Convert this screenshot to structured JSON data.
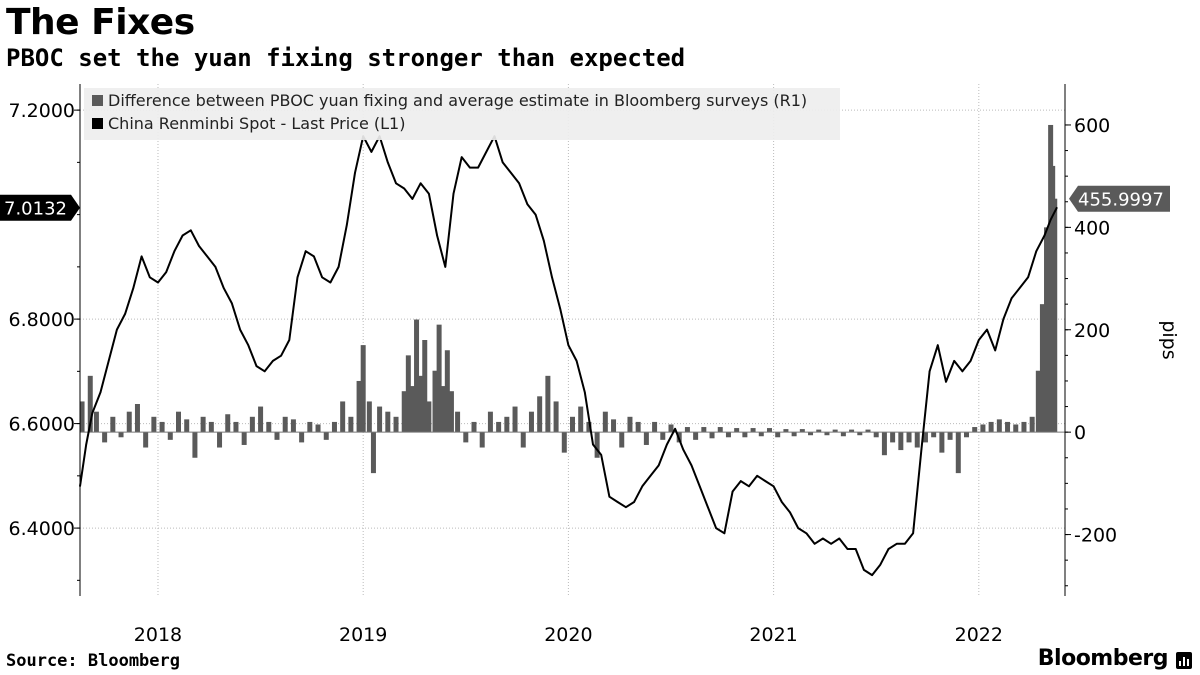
{
  "header": {
    "title": "The Fixes",
    "subtitle": "PBOC set the yuan fixing stronger than expected"
  },
  "footer": {
    "source": "Source: Bloomberg",
    "brand": "Bloomberg"
  },
  "chart_data": {
    "type": "bar",
    "title": "The Fixes",
    "subtitle": "PBOC set the yuan fixing stronger than expected",
    "legend_position": "top-left",
    "grid": true,
    "x_ticks": [
      "2018",
      "2019",
      "2020",
      "2021",
      "2022"
    ],
    "x_range": [
      2017.62,
      2022.42
    ],
    "left_axis": {
      "ticks": [
        "7.2000",
        "6.8000",
        "6.6000",
        "6.4000"
      ],
      "range": [
        6.27,
        7.25
      ],
      "label": ""
    },
    "right_axis": {
      "ticks": [
        "600",
        "400",
        "200",
        "0",
        "-200"
      ],
      "range": [
        -320,
        680
      ],
      "label": "pips"
    },
    "series": [
      {
        "name": "Difference between PBOC yuan fixing and average estimate in Bloomberg surveys (R1)",
        "type": "bar",
        "axis": "right",
        "color": "#5a5a5a",
        "last_value": "455.9997",
        "points": [
          [
            2017.63,
            60
          ],
          [
            2017.67,
            110
          ],
          [
            2017.7,
            40
          ],
          [
            2017.74,
            -20
          ],
          [
            2017.78,
            30
          ],
          [
            2017.82,
            -10
          ],
          [
            2017.86,
            40
          ],
          [
            2017.9,
            55
          ],
          [
            2017.94,
            -30
          ],
          [
            2017.98,
            30
          ],
          [
            2018.02,
            20
          ],
          [
            2018.06,
            -15
          ],
          [
            2018.1,
            40
          ],
          [
            2018.14,
            25
          ],
          [
            2018.18,
            -50
          ],
          [
            2018.22,
            30
          ],
          [
            2018.26,
            20
          ],
          [
            2018.3,
            -30
          ],
          [
            2018.34,
            35
          ],
          [
            2018.38,
            20
          ],
          [
            2018.42,
            -25
          ],
          [
            2018.46,
            30
          ],
          [
            2018.5,
            50
          ],
          [
            2018.54,
            20
          ],
          [
            2018.58,
            -15
          ],
          [
            2018.62,
            30
          ],
          [
            2018.66,
            25
          ],
          [
            2018.7,
            -20
          ],
          [
            2018.74,
            20
          ],
          [
            2018.78,
            15
          ],
          [
            2018.82,
            -15
          ],
          [
            2018.86,
            20
          ],
          [
            2018.9,
            60
          ],
          [
            2018.94,
            30
          ],
          [
            2018.98,
            100
          ],
          [
            2019.0,
            170
          ],
          [
            2019.03,
            60
          ],
          [
            2019.05,
            -80
          ],
          [
            2019.08,
            50
          ],
          [
            2019.12,
            40
          ],
          [
            2019.16,
            30
          ],
          [
            2019.2,
            80
          ],
          [
            2019.22,
            150
          ],
          [
            2019.24,
            90
          ],
          [
            2019.26,
            220
          ],
          [
            2019.28,
            110
          ],
          [
            2019.3,
            180
          ],
          [
            2019.32,
            60
          ],
          [
            2019.35,
            120
          ],
          [
            2019.37,
            210
          ],
          [
            2019.39,
            90
          ],
          [
            2019.41,
            160
          ],
          [
            2019.43,
            80
          ],
          [
            2019.46,
            40
          ],
          [
            2019.5,
            -20
          ],
          [
            2019.54,
            20
          ],
          [
            2019.58,
            -30
          ],
          [
            2019.62,
            40
          ],
          [
            2019.66,
            20
          ],
          [
            2019.7,
            30
          ],
          [
            2019.74,
            50
          ],
          [
            2019.78,
            -30
          ],
          [
            2019.82,
            40
          ],
          [
            2019.86,
            70
          ],
          [
            2019.9,
            110
          ],
          [
            2019.94,
            60
          ],
          [
            2019.98,
            -40
          ],
          [
            2020.02,
            30
          ],
          [
            2020.06,
            50
          ],
          [
            2020.1,
            20
          ],
          [
            2020.14,
            -50
          ],
          [
            2020.18,
            40
          ],
          [
            2020.22,
            25
          ],
          [
            2020.26,
            -30
          ],
          [
            2020.3,
            30
          ],
          [
            2020.34,
            20
          ],
          [
            2020.38,
            -25
          ],
          [
            2020.42,
            20
          ],
          [
            2020.46,
            -15
          ],
          [
            2020.5,
            15
          ],
          [
            2020.54,
            -20
          ],
          [
            2020.58,
            10
          ],
          [
            2020.62,
            -15
          ],
          [
            2020.66,
            10
          ],
          [
            2020.7,
            -12
          ],
          [
            2020.74,
            10
          ],
          [
            2020.78,
            -10
          ],
          [
            2020.82,
            8
          ],
          [
            2020.86,
            -10
          ],
          [
            2020.9,
            8
          ],
          [
            2020.94,
            -8
          ],
          [
            2020.98,
            8
          ],
          [
            2021.02,
            -10
          ],
          [
            2021.06,
            6
          ],
          [
            2021.1,
            -8
          ],
          [
            2021.14,
            6
          ],
          [
            2021.18,
            -6
          ],
          [
            2021.22,
            5
          ],
          [
            2021.26,
            -6
          ],
          [
            2021.3,
            5
          ],
          [
            2021.34,
            -8
          ],
          [
            2021.38,
            5
          ],
          [
            2021.42,
            -6
          ],
          [
            2021.46,
            5
          ],
          [
            2021.5,
            -10
          ],
          [
            2021.54,
            -45
          ],
          [
            2021.58,
            -20
          ],
          [
            2021.62,
            -35
          ],
          [
            2021.66,
            -20
          ],
          [
            2021.7,
            -30
          ],
          [
            2021.74,
            -20
          ],
          [
            2021.78,
            -10
          ],
          [
            2021.82,
            -40
          ],
          [
            2021.86,
            -15
          ],
          [
            2021.9,
            -80
          ],
          [
            2021.94,
            -10
          ],
          [
            2021.98,
            10
          ],
          [
            2022.02,
            15
          ],
          [
            2022.06,
            20
          ],
          [
            2022.1,
            25
          ],
          [
            2022.14,
            20
          ],
          [
            2022.18,
            15
          ],
          [
            2022.22,
            20
          ],
          [
            2022.26,
            30
          ],
          [
            2022.29,
            120
          ],
          [
            2022.31,
            250
          ],
          [
            2022.33,
            400
          ],
          [
            2022.35,
            600
          ],
          [
            2022.36,
            520
          ],
          [
            2022.37,
            456
          ]
        ]
      },
      {
        "name": "China Renminbi Spot - Last Price (L1)",
        "type": "line",
        "axis": "left",
        "color": "#000000",
        "last_value": "7.0132",
        "points": [
          [
            2017.62,
            6.48
          ],
          [
            2017.65,
            6.56
          ],
          [
            2017.68,
            6.62
          ],
          [
            2017.72,
            6.66
          ],
          [
            2017.76,
            6.72
          ],
          [
            2017.8,
            6.78
          ],
          [
            2017.84,
            6.81
          ],
          [
            2017.88,
            6.86
          ],
          [
            2017.92,
            6.92
          ],
          [
            2017.96,
            6.88
          ],
          [
            2018.0,
            6.87
          ],
          [
            2018.04,
            6.89
          ],
          [
            2018.08,
            6.93
          ],
          [
            2018.12,
            6.96
          ],
          [
            2018.16,
            6.97
          ],
          [
            2018.2,
            6.94
          ],
          [
            2018.24,
            6.92
          ],
          [
            2018.28,
            6.9
          ],
          [
            2018.32,
            6.86
          ],
          [
            2018.36,
            6.83
          ],
          [
            2018.4,
            6.78
          ],
          [
            2018.44,
            6.75
          ],
          [
            2018.48,
            6.71
          ],
          [
            2018.52,
            6.7
          ],
          [
            2018.56,
            6.72
          ],
          [
            2018.6,
            6.73
          ],
          [
            2018.64,
            6.76
          ],
          [
            2018.68,
            6.88
          ],
          [
            2018.72,
            6.93
          ],
          [
            2018.76,
            6.92
          ],
          [
            2018.8,
            6.88
          ],
          [
            2018.84,
            6.87
          ],
          [
            2018.88,
            6.9
          ],
          [
            2018.92,
            6.98
          ],
          [
            2018.96,
            7.08
          ],
          [
            2019.0,
            7.15
          ],
          [
            2019.04,
            7.12
          ],
          [
            2019.08,
            7.15
          ],
          [
            2019.12,
            7.1
          ],
          [
            2019.16,
            7.06
          ],
          [
            2019.2,
            7.05
          ],
          [
            2019.24,
            7.03
          ],
          [
            2019.28,
            7.06
          ],
          [
            2019.32,
            7.04
          ],
          [
            2019.36,
            6.96
          ],
          [
            2019.4,
            6.9
          ],
          [
            2019.44,
            7.04
          ],
          [
            2019.48,
            7.11
          ],
          [
            2019.52,
            7.09
          ],
          [
            2019.56,
            7.09
          ],
          [
            2019.6,
            7.12
          ],
          [
            2019.64,
            7.15
          ],
          [
            2019.68,
            7.1
          ],
          [
            2019.72,
            7.08
          ],
          [
            2019.76,
            7.06
          ],
          [
            2019.8,
            7.02
          ],
          [
            2019.84,
            7.0
          ],
          [
            2019.88,
            6.95
          ],
          [
            2019.92,
            6.88
          ],
          [
            2019.96,
            6.82
          ],
          [
            2020.0,
            6.75
          ],
          [
            2020.04,
            6.72
          ],
          [
            2020.08,
            6.66
          ],
          [
            2020.12,
            6.56
          ],
          [
            2020.16,
            6.54
          ],
          [
            2020.2,
            6.46
          ],
          [
            2020.24,
            6.45
          ],
          [
            2020.28,
            6.44
          ],
          [
            2020.32,
            6.45
          ],
          [
            2020.36,
            6.48
          ],
          [
            2020.4,
            6.5
          ],
          [
            2020.44,
            6.52
          ],
          [
            2020.48,
            6.56
          ],
          [
            2020.52,
            6.59
          ],
          [
            2020.56,
            6.55
          ],
          [
            2020.6,
            6.52
          ],
          [
            2020.64,
            6.48
          ],
          [
            2020.68,
            6.44
          ],
          [
            2020.72,
            6.4
          ],
          [
            2020.76,
            6.39
          ],
          [
            2020.8,
            6.47
          ],
          [
            2020.84,
            6.49
          ],
          [
            2020.88,
            6.48
          ],
          [
            2020.92,
            6.5
          ],
          [
            2020.96,
            6.49
          ],
          [
            2021.0,
            6.48
          ],
          [
            2021.04,
            6.45
          ],
          [
            2021.08,
            6.43
          ],
          [
            2021.12,
            6.4
          ],
          [
            2021.16,
            6.39
          ],
          [
            2021.2,
            6.37
          ],
          [
            2021.24,
            6.38
          ],
          [
            2021.28,
            6.37
          ],
          [
            2021.32,
            6.38
          ],
          [
            2021.36,
            6.36
          ],
          [
            2021.4,
            6.36
          ],
          [
            2021.44,
            6.32
          ],
          [
            2021.48,
            6.31
          ],
          [
            2021.52,
            6.33
          ],
          [
            2021.56,
            6.36
          ],
          [
            2021.6,
            6.37
          ],
          [
            2021.64,
            6.37
          ],
          [
            2021.68,
            6.39
          ],
          [
            2021.72,
            6.55
          ],
          [
            2021.76,
            6.7
          ],
          [
            2021.8,
            6.75
          ],
          [
            2021.84,
            6.68
          ],
          [
            2021.88,
            6.72
          ],
          [
            2021.92,
            6.7
          ],
          [
            2021.96,
            6.72
          ],
          [
            2022.0,
            6.76
          ],
          [
            2022.04,
            6.78
          ],
          [
            2022.08,
            6.74
          ],
          [
            2022.12,
            6.8
          ],
          [
            2022.16,
            6.84
          ],
          [
            2022.2,
            6.86
          ],
          [
            2022.24,
            6.88
          ],
          [
            2022.28,
            6.93
          ],
          [
            2022.32,
            6.96
          ],
          [
            2022.35,
            6.99
          ],
          [
            2022.38,
            7.0132
          ]
        ]
      }
    ]
  }
}
